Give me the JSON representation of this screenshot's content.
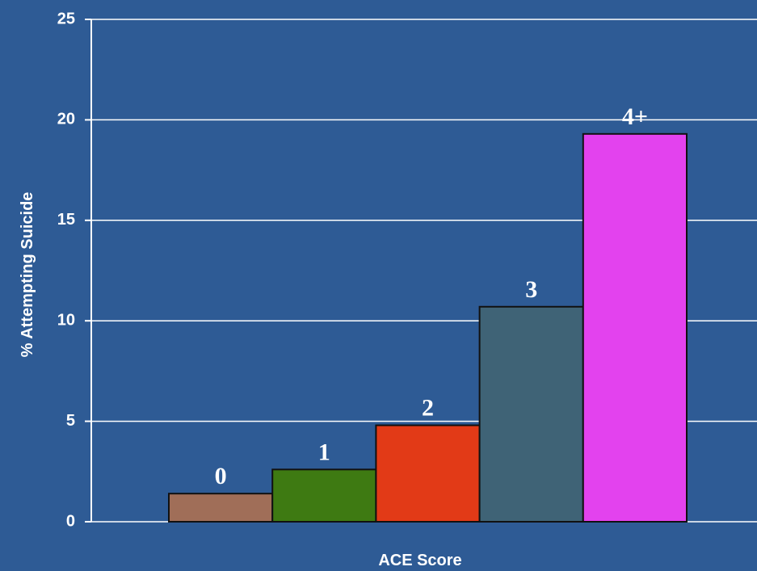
{
  "chart_data": {
    "type": "bar",
    "categories": [
      "0",
      "1",
      "2",
      "3",
      "4+"
    ],
    "values": [
      1.4,
      2.6,
      4.8,
      10.7,
      19.3
    ],
    "colors": [
      "#a06e58",
      "#3e7a12",
      "#e23a17",
      "#3f6376",
      "#e342ee"
    ],
    "xlabel": "ACE Score",
    "ylabel": "% Attempting Suicide",
    "ylim": [
      0,
      25
    ],
    "yticks": [
      0,
      5,
      10,
      15,
      20,
      25
    ],
    "grid": true
  }
}
